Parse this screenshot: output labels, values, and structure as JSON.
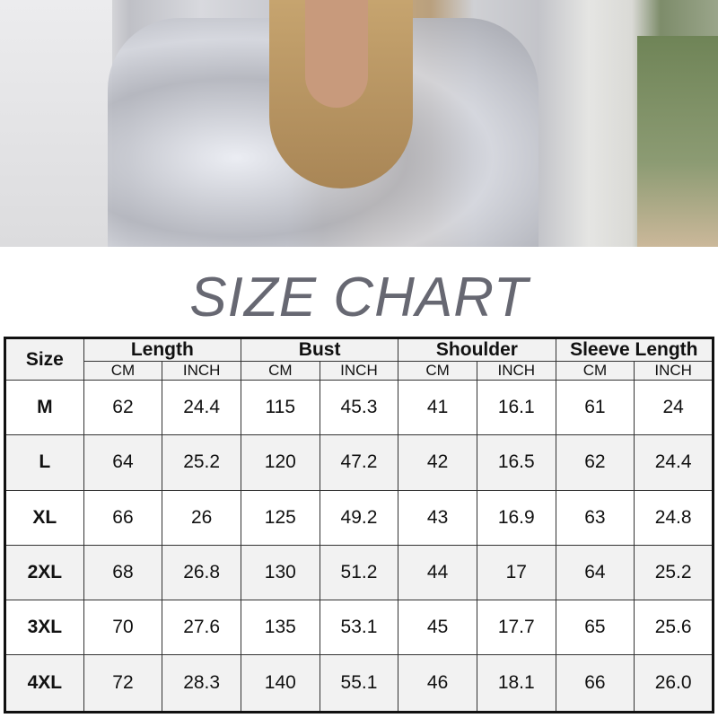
{
  "title": "SIZE CHART",
  "table": {
    "size_header": "Size",
    "groups": [
      "Length",
      "Bust",
      "Shoulder",
      "Sleeve Length"
    ],
    "units": [
      "CM",
      "INCH"
    ],
    "rows": [
      {
        "size": "M",
        "values": [
          "62",
          "24.4",
          "115",
          "45.3",
          "41",
          "16.1",
          "61",
          "24"
        ]
      },
      {
        "size": "L",
        "values": [
          "64",
          "25.2",
          "120",
          "47.2",
          "42",
          "16.5",
          "62",
          "24.4"
        ]
      },
      {
        "size": "XL",
        "values": [
          "66",
          "26",
          "125",
          "49.2",
          "43",
          "16.9",
          "63",
          "24.8"
        ]
      },
      {
        "size": "2XL",
        "values": [
          "68",
          "26.8",
          "130",
          "51.2",
          "44",
          "17",
          "64",
          "25.2"
        ]
      },
      {
        "size": "3XL",
        "values": [
          "70",
          "27.6",
          "135",
          "53.1",
          "45",
          "17.7",
          "65",
          "25.6"
        ]
      },
      {
        "size": "4XL",
        "values": [
          "72",
          "28.3",
          "140",
          "55.1",
          "46",
          "18.1",
          "66",
          "26.0"
        ]
      }
    ]
  },
  "colors": {
    "title": "#676872",
    "header_bg": "#f2f2f2",
    "border": "#111111"
  }
}
